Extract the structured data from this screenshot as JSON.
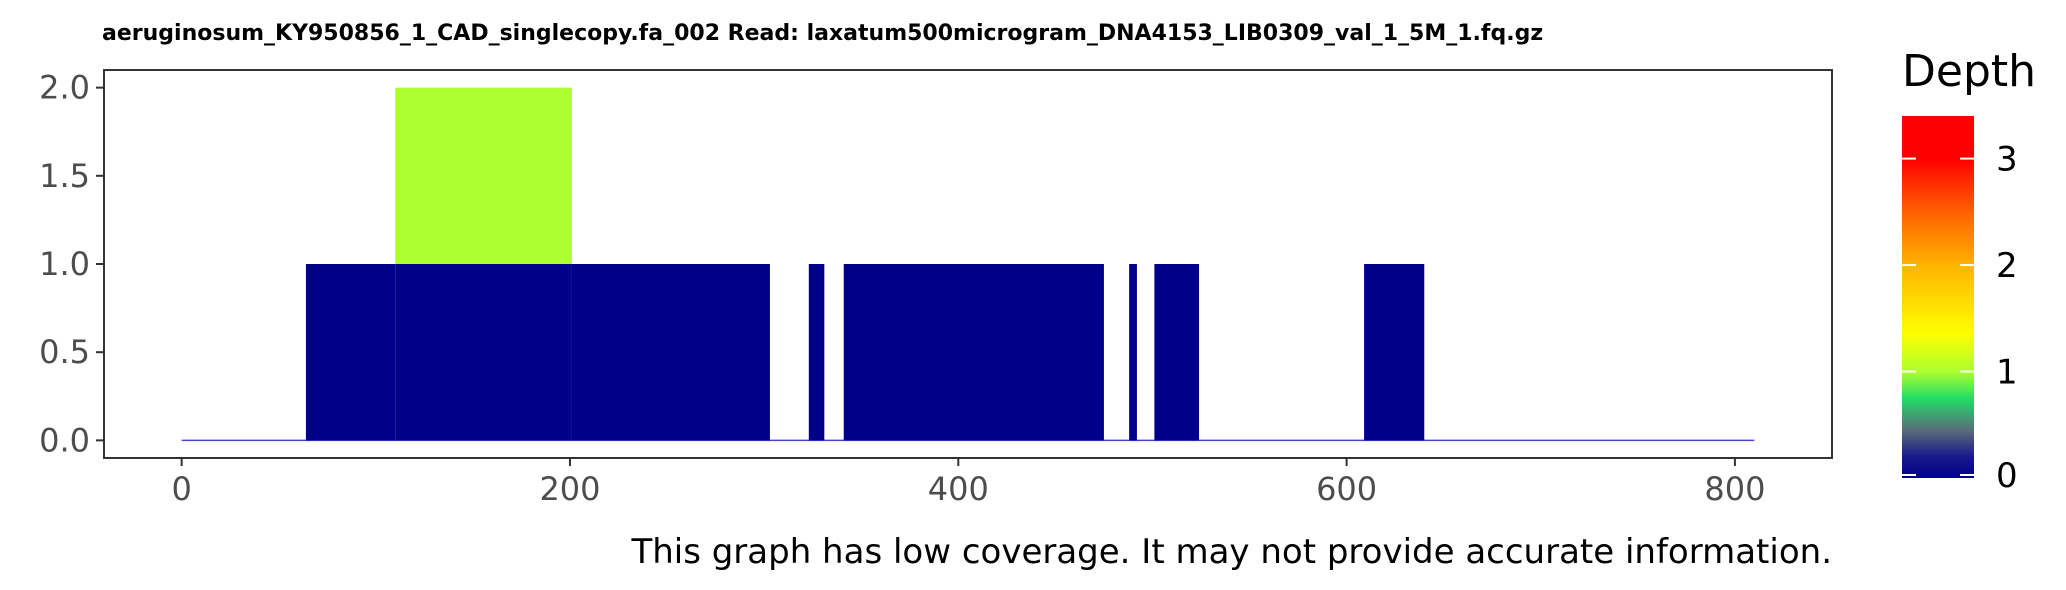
{
  "title": "aeruginosum_KY950856_1_CAD_singlecopy.fa_002   Read: laxatum500microgram_DNA4153_LIB0309_val_1_5M_1.fq.gz",
  "note": "This graph has low coverage. It may not provide accurate information.",
  "colors": {
    "depth_0": "#00008B",
    "depth_1": "#ADFF2F",
    "depth_2": "#FFB300",
    "depth_3": "#FF0000",
    "panel_border": "#333333",
    "baseline": "#4444cc"
  },
  "chart_data": {
    "type": "area",
    "xlim": [
      -40,
      850
    ],
    "ylim": [
      -0.1,
      2.1
    ],
    "x_ticks": [
      0,
      200,
      400,
      600,
      800
    ],
    "x_tick_labels": [
      "0",
      "200",
      "400",
      "600",
      "800"
    ],
    "y_ticks": [
      0.0,
      0.5,
      1.0,
      1.5,
      2.0
    ],
    "y_tick_labels": [
      "0.0",
      "0.5",
      "1.0",
      "1.5",
      "2.0"
    ],
    "x_range": [
      0,
      810
    ],
    "grid": false,
    "legend": {
      "title": "Depth",
      "type": "colorbar",
      "placement": "right",
      "range": [
        0,
        3.4
      ],
      "ticks": [
        0,
        1,
        2,
        3
      ],
      "tick_labels": [
        "0",
        "1",
        "2",
        "3"
      ]
    },
    "segments": [
      {
        "x_start": 0,
        "x_end": 64,
        "depth": 0
      },
      {
        "x_start": 64,
        "x_end": 110,
        "depth": 1
      },
      {
        "x_start": 110,
        "x_end": 201,
        "depth": 2
      },
      {
        "x_start": 201,
        "x_end": 303,
        "depth": 1
      },
      {
        "x_start": 303,
        "x_end": 323,
        "depth": 0
      },
      {
        "x_start": 323,
        "x_end": 331,
        "depth": 1
      },
      {
        "x_start": 331,
        "x_end": 341,
        "depth": 0
      },
      {
        "x_start": 341,
        "x_end": 475,
        "depth": 1
      },
      {
        "x_start": 475,
        "x_end": 488,
        "depth": 0
      },
      {
        "x_start": 488,
        "x_end": 492,
        "depth": 1
      },
      {
        "x_start": 492,
        "x_end": 501,
        "depth": 0
      },
      {
        "x_start": 501,
        "x_end": 524,
        "depth": 1
      },
      {
        "x_start": 524,
        "x_end": 609,
        "depth": 0
      },
      {
        "x_start": 609,
        "x_end": 640,
        "depth": 1
      },
      {
        "x_start": 640,
        "x_end": 810,
        "depth": 0
      }
    ]
  }
}
